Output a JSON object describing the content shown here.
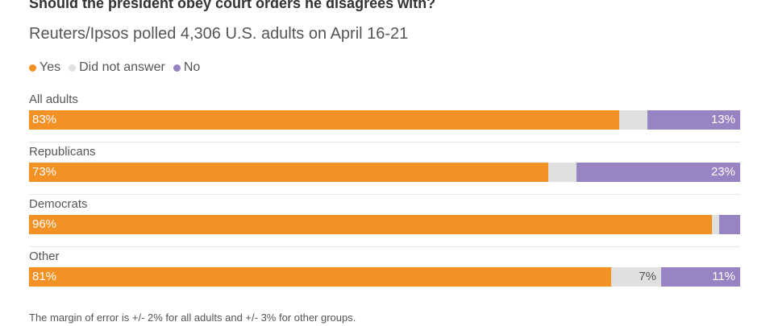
{
  "title": "Should the president obey court orders he disagrees with?",
  "subtitle": "Reuters/Ipsos polled 4,306 U.S. adults on April 16-21",
  "footer": "The margin of error is +/- 2% for all adults and +/- 3% for other groups.",
  "chart_data": {
    "type": "bar",
    "stacked": true,
    "orientation": "horizontal",
    "legend_position": "top-left",
    "series": [
      {
        "name": "Yes",
        "color": "#f39125"
      },
      {
        "name": "Did not answer",
        "color": "#e0e0e0"
      },
      {
        "name": "No",
        "color": "#9883c3"
      }
    ],
    "categories": [
      "All adults",
      "Republicans",
      "Democrats",
      "Other"
    ],
    "values": [
      [
        83,
        4,
        13
      ],
      [
        73,
        4,
        23
      ],
      [
        96,
        1,
        3
      ],
      [
        81,
        7,
        11
      ]
    ],
    "labels": [
      [
        "83%",
        "",
        "13%"
      ],
      [
        "73%",
        "",
        "23%"
      ],
      [
        "96%",
        "",
        ""
      ],
      [
        "81%",
        "7%",
        "11%"
      ]
    ]
  }
}
